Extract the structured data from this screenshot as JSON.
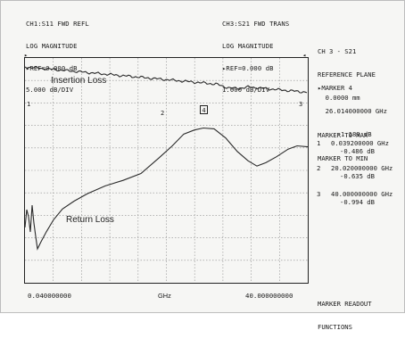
{
  "header": {
    "ch1": {
      "line1": "CH1:S11 FWD REFL",
      "line2": "LOG MAGNITUDE",
      "line3": "▸REF=0.000 dB",
      "line4": "5.000 dB/DIV"
    },
    "ch3": {
      "line1": "CH3:S21 FWD TRANS",
      "line2": "LOG MAGNITUDE",
      "line3": "▸REF=0.000 dB",
      "line4": "1.000 dB/DIV"
    }
  },
  "plot": {
    "trace_labels": {
      "insertion": "Insertion Loss",
      "return": "Return Loss"
    },
    "markers": {
      "m1": "1",
      "m2": "2",
      "m3": "3",
      "m4": "4"
    },
    "x_axis": {
      "start": "0.040000000",
      "unit": "GHz",
      "stop": "40.000000000"
    }
  },
  "side_panel": {
    "channel": {
      "line1": "CH 3 - S21",
      "line2": "REFERENCE PLANE",
      "line3": "  0.0000 mm"
    },
    "active_marker": {
      "line1": "▸MARKER 4",
      "line2": "  26.014000000 GHz",
      "line3": "     -1.189 dB"
    },
    "functions": {
      "line1": "MARKER TO MAX",
      "line2": "MARKER TO MIN"
    },
    "readouts": [
      {
        "num": "1",
        "freq": "0.039200000 GHz",
        "value": "-0.486 dB"
      },
      {
        "num": "2",
        "freq": "20.020000000 GHz",
        "value": "-0.635 dB"
      },
      {
        "num": "3",
        "freq": "40.000000000 GHz",
        "value": "-0.994 dB"
      }
    ],
    "footer": {
      "line1": "MARKER READOUT",
      "line2": "FUNCTIONS"
    }
  },
  "colors": {
    "trace": "#2a2a2a",
    "grid": "#8c8c8c",
    "background": "#f6f6f4"
  }
}
